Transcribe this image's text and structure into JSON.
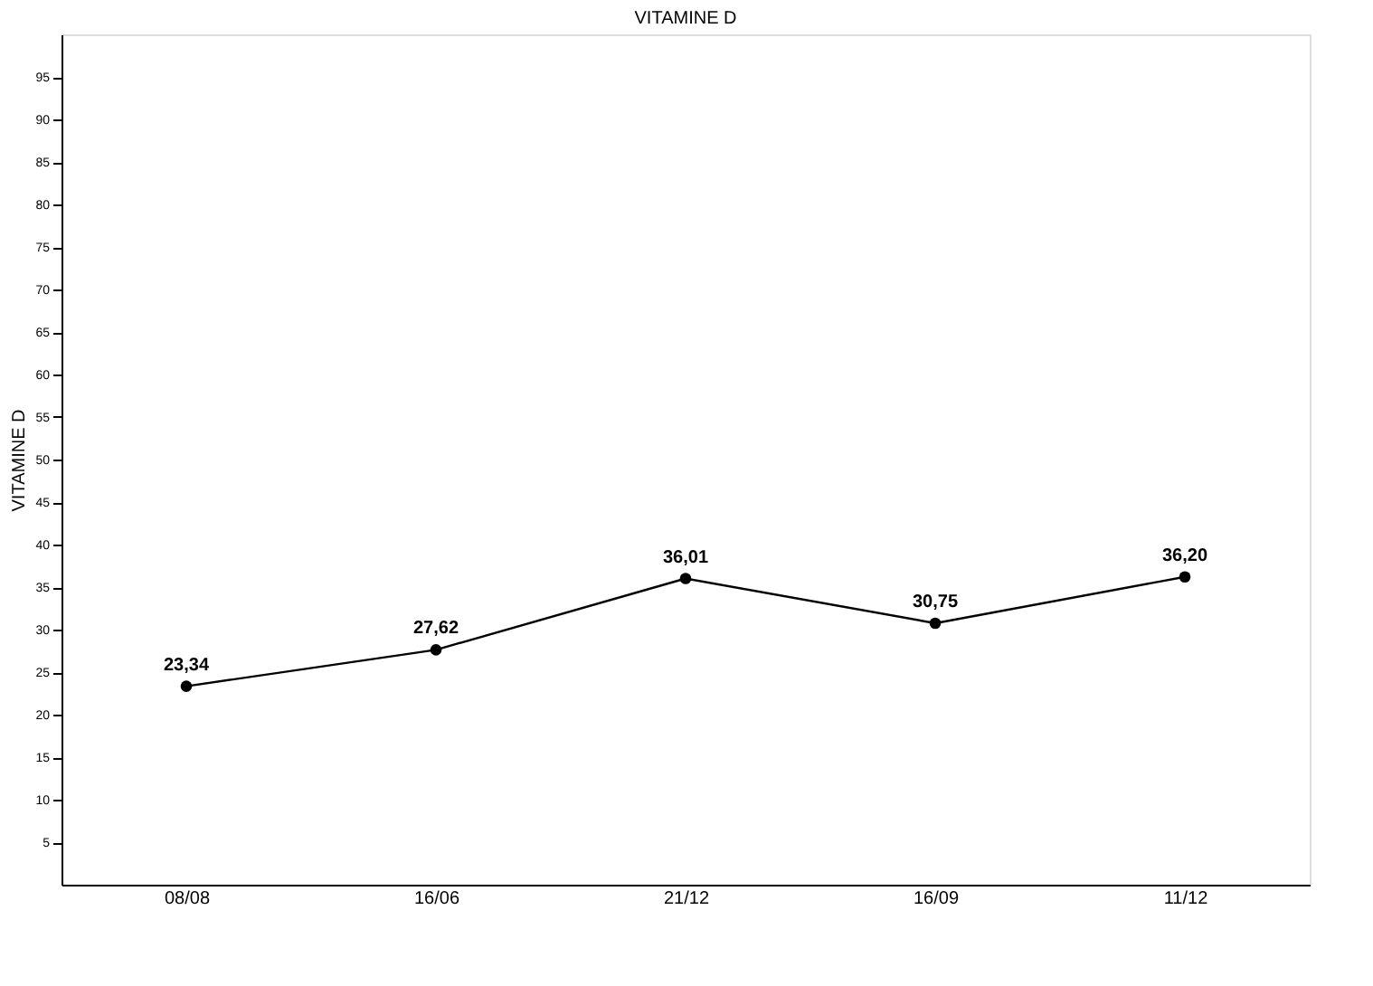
{
  "chart_data": {
    "type": "line",
    "title": "VITAMINE D",
    "ylabel": "VITAMINE D",
    "categories": [
      "08/08",
      "16/06",
      "21/12",
      "16/09",
      "11/12"
    ],
    "series": [
      {
        "color": "#000000",
        "values": [
          23.34,
          27.62,
          36.01,
          30.75,
          36.2
        ],
        "value_labels": [
          "23,34",
          "27,62",
          "36,01",
          "30,75",
          "36,20"
        ]
      }
    ],
    "ylim": [
      0,
      100
    ],
    "yticks": [
      5,
      10,
      15,
      20,
      25,
      30,
      35,
      40,
      45,
      50,
      55,
      60,
      65,
      70,
      75,
      80,
      85,
      90,
      95
    ],
    "grid": false,
    "marker": "circle",
    "line_style": "solid",
    "legend": false
  }
}
